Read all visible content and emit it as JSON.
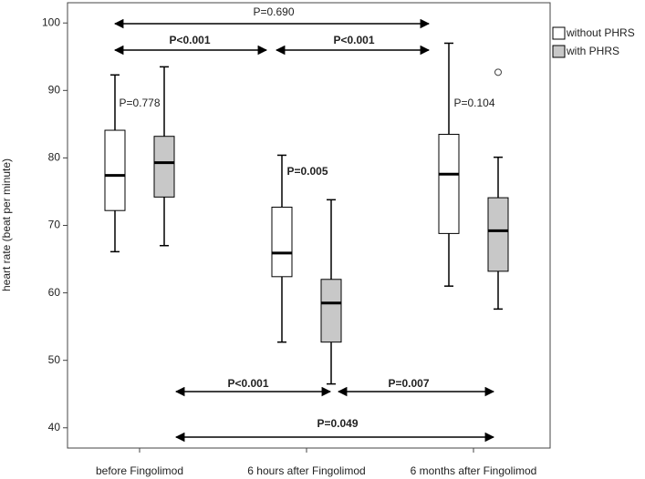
{
  "chart_data": {
    "type": "box",
    "y_label": "heart rate (beat per minute)",
    "categories": [
      "before Fingolimod",
      "6 hours after Fingolimod",
      "6 months after Fingolimod"
    ],
    "series": [
      {
        "name": "without PHRS",
        "color": "#ffffff",
        "values": [
          {
            "min": 66.1,
            "q1": 72.2,
            "median": 77.4,
            "q3": 84.1,
            "max": 92.3,
            "outliers": []
          },
          {
            "min": 52.7,
            "q1": 62.4,
            "median": 65.9,
            "q3": 72.7,
            "max": 80.4,
            "outliers": []
          },
          {
            "min": 61.0,
            "q1": 68.8,
            "median": 77.6,
            "q3": 83.5,
            "max": 97.0,
            "outliers": []
          }
        ]
      },
      {
        "name": "with PHRS",
        "color": "#c8c8c8",
        "values": [
          {
            "min": 67.0,
            "q1": 74.2,
            "median": 79.3,
            "q3": 83.2,
            "max": 93.5,
            "outliers": []
          },
          {
            "min": 46.5,
            "q1": 52.7,
            "median": 58.5,
            "q3": 62.0,
            "max": 73.8,
            "outliers": []
          },
          {
            "min": 57.6,
            "q1": 63.2,
            "median": 69.2,
            "q3": 74.1,
            "max": 80.1,
            "outliers": [
              92.7
            ]
          }
        ]
      }
    ],
    "annotations": [
      "P=0.690",
      "P<0.001",
      "P<0.001",
      "P=0.778",
      "P=0.005",
      "P=0.104",
      "P<0.001",
      "P=0.007",
      "P=0.049"
    ],
    "ylim": [
      37,
      103
    ],
    "yticks": [
      40,
      50,
      60,
      70,
      80,
      90,
      100
    ],
    "legend": "top-right-outside"
  }
}
